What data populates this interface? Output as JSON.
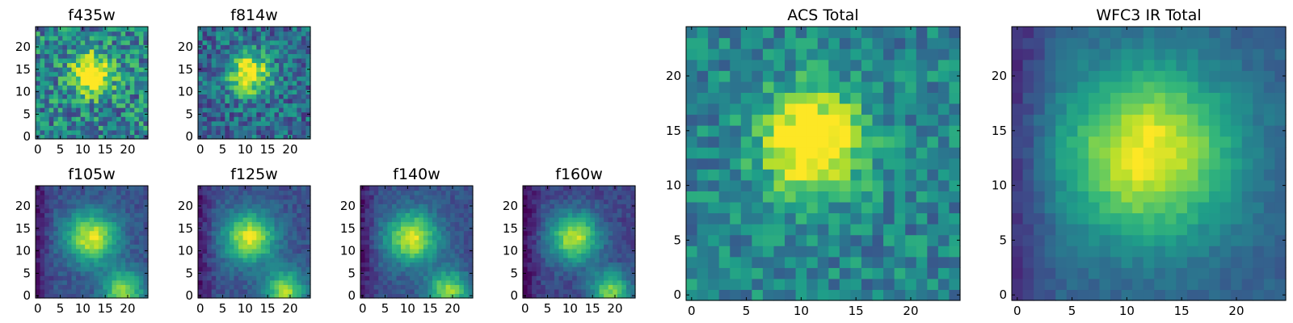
{
  "chart_data": [
    {
      "type": "heatmap",
      "title": "f435w",
      "colormap": "viridis",
      "xlim": [
        -0.5,
        24.5
      ],
      "ylim": [
        -0.5,
        24.5
      ],
      "xticks": [
        0,
        5,
        10,
        15,
        20
      ],
      "yticks": [
        0,
        5,
        10,
        15,
        20
      ],
      "peak": [
        12,
        14
      ],
      "morphology": "compact",
      "noise": 0.55,
      "base": 0.45
    },
    {
      "type": "heatmap",
      "title": "f814w",
      "colormap": "viridis",
      "xlim": [
        -0.5,
        24.5
      ],
      "ylim": [
        -0.5,
        24.5
      ],
      "xticks": [
        0,
        5,
        10,
        15,
        20
      ],
      "yticks": [
        0,
        5,
        10,
        15,
        20
      ],
      "peak": [
        11,
        14
      ],
      "morphology": "compact-extended",
      "noise": 0.45,
      "base": 0.35
    },
    {
      "type": "heatmap",
      "title": "f105w",
      "colormap": "viridis",
      "xlim": [
        -0.5,
        24.5
      ],
      "ylim": [
        -0.5,
        24.5
      ],
      "xticks": [
        0,
        5,
        10,
        15,
        20
      ],
      "yticks": [
        0,
        5,
        10,
        15,
        20
      ],
      "peak": [
        12,
        13
      ],
      "secondary_peak": [
        19,
        1
      ],
      "morphology": "extended",
      "noise": 0.15,
      "base": 0.25
    },
    {
      "type": "heatmap",
      "title": "f125w",
      "colormap": "viridis",
      "xlim": [
        -0.5,
        24.5
      ],
      "ylim": [
        -0.5,
        24.5
      ],
      "xticks": [
        0,
        5,
        10,
        15,
        20
      ],
      "yticks": [
        0,
        5,
        10,
        15,
        20
      ],
      "peak": [
        11,
        13
      ],
      "secondary_peak": [
        19,
        1
      ],
      "morphology": "extended",
      "noise": 0.15,
      "base": 0.25
    },
    {
      "type": "heatmap",
      "title": "f140w",
      "colormap": "viridis",
      "xlim": [
        -0.5,
        24.5
      ],
      "ylim": [
        -0.5,
        24.5
      ],
      "xticks": [
        0,
        5,
        10,
        15,
        20
      ],
      "yticks": [
        0,
        5,
        10,
        15,
        20
      ],
      "peak": [
        11,
        13
      ],
      "secondary_peak": [
        19,
        1
      ],
      "morphology": "extended",
      "noise": 0.15,
      "base": 0.25
    },
    {
      "type": "heatmap",
      "title": "f160w",
      "colormap": "viridis",
      "xlim": [
        -0.5,
        24.5
      ],
      "ylim": [
        -0.5,
        24.5
      ],
      "xticks": [
        0,
        5,
        10,
        15,
        20
      ],
      "yticks": [
        0,
        5,
        10,
        15,
        20
      ],
      "peak": [
        11,
        13
      ],
      "secondary_peak": [
        19,
        1
      ],
      "morphology": "extended",
      "noise": 0.15,
      "base": 0.2
    },
    {
      "type": "heatmap",
      "title": "ACS Total",
      "colormap": "viridis",
      "xlim": [
        -0.5,
        24.5
      ],
      "ylim": [
        -0.5,
        24.5
      ],
      "xticks": [
        0,
        5,
        10,
        15,
        20
      ],
      "yticks": [
        0,
        5,
        10,
        15,
        20
      ],
      "peak": [
        11,
        14
      ],
      "morphology": "compact",
      "noise": 0.35,
      "base": 0.45
    },
    {
      "type": "heatmap",
      "title": "WFC3 IR Total",
      "colormap": "viridis",
      "xlim": [
        -0.5,
        24.5
      ],
      "ylim": [
        -0.5,
        24.5
      ],
      "xticks": [
        0,
        5,
        10,
        15,
        20
      ],
      "yticks": [
        0,
        5,
        10,
        15,
        20
      ],
      "peak": [
        12,
        13
      ],
      "morphology": "diffuse",
      "noise": 0.1,
      "base": 0.3
    }
  ]
}
